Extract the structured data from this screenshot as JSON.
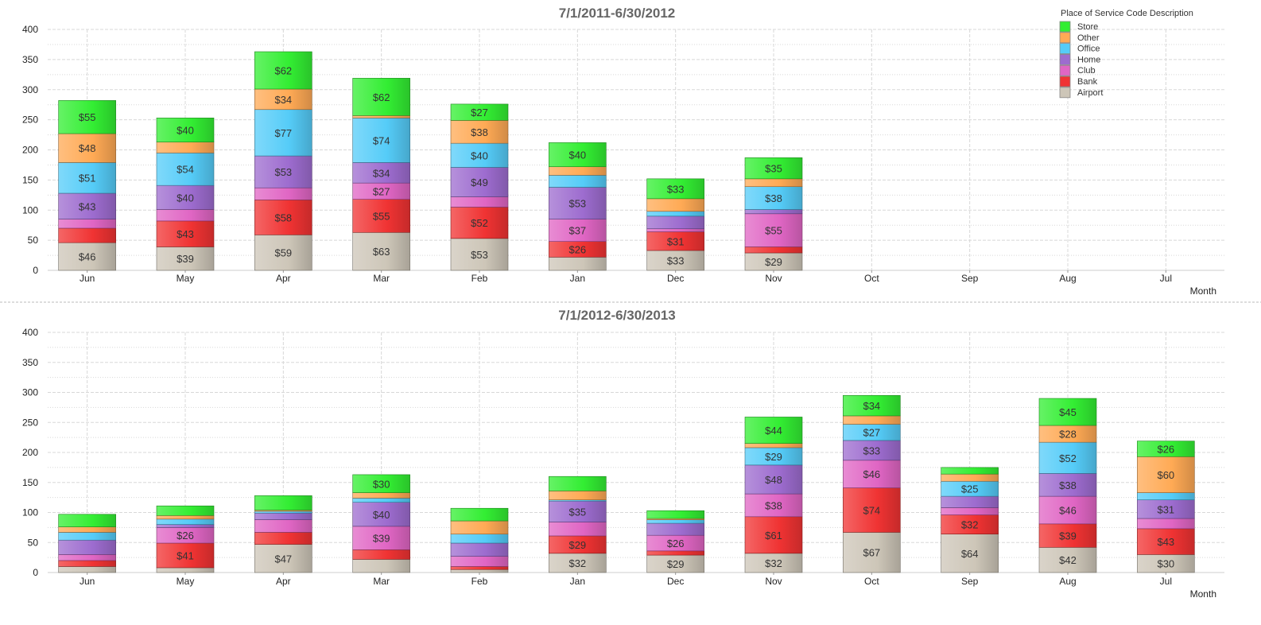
{
  "chart_data": [
    {
      "type": "bar",
      "stacked": true,
      "title": "7/1/2011-6/30/2012",
      "xlabel": "Month",
      "ylabel": "",
      "ylim": [
        0,
        400
      ],
      "yticks": [
        0,
        50,
        100,
        150,
        200,
        250,
        300,
        350,
        400
      ],
      "grid": true,
      "value_prefix": "$",
      "categories": [
        "Jun",
        "May",
        "Apr",
        "Mar",
        "Feb",
        "Jan",
        "Dec",
        "Nov",
        "Oct",
        "Sep",
        "Aug",
        "Jul"
      ],
      "series": [
        {
          "name": "Airport",
          "values": [
            46,
            39,
            59,
            63,
            53,
            22,
            33,
            29,
            0,
            0,
            0,
            0
          ]
        },
        {
          "name": "Bank",
          "values": [
            24,
            43,
            58,
            55,
            52,
            26,
            31,
            10,
            0,
            0,
            0,
            0
          ]
        },
        {
          "name": "Club",
          "values": [
            15,
            19,
            20,
            27,
            17,
            37,
            5,
            55,
            0,
            0,
            0,
            0
          ]
        },
        {
          "name": "Home",
          "values": [
            43,
            40,
            53,
            34,
            49,
            53,
            21,
            7,
            0,
            0,
            0,
            0
          ]
        },
        {
          "name": "Office",
          "values": [
            51,
            54,
            77,
            74,
            40,
            20,
            8,
            38,
            0,
            0,
            0,
            0
          ]
        },
        {
          "name": "Other",
          "values": [
            48,
            18,
            34,
            4,
            38,
            14,
            21,
            13,
            0,
            0,
            0,
            0
          ]
        },
        {
          "name": "Store",
          "values": [
            55,
            40,
            62,
            62,
            27,
            40,
            33,
            35,
            0,
            0,
            0,
            0
          ]
        }
      ]
    },
    {
      "type": "bar",
      "stacked": true,
      "title": "7/1/2012-6/30/2013",
      "xlabel": "Month",
      "ylabel": "",
      "ylim": [
        0,
        400
      ],
      "yticks": [
        0,
        50,
        100,
        150,
        200,
        250,
        300,
        350,
        400
      ],
      "grid": true,
      "value_prefix": "$",
      "categories": [
        "Jun",
        "May",
        "Apr",
        "Mar",
        "Feb",
        "Jan",
        "Dec",
        "Nov",
        "Oct",
        "Sep",
        "Aug",
        "Jul"
      ],
      "series": [
        {
          "name": "Airport",
          "values": [
            10,
            8,
            47,
            22,
            5,
            32,
            29,
            32,
            67,
            64,
            42,
            30
          ]
        },
        {
          "name": "Bank",
          "values": [
            10,
            41,
            20,
            16,
            5,
            29,
            7,
            61,
            74,
            32,
            39,
            43
          ]
        },
        {
          "name": "Club",
          "values": [
            10,
            26,
            21,
            39,
            17,
            23,
            26,
            38,
            46,
            12,
            46,
            17
          ]
        },
        {
          "name": "Home",
          "values": [
            24,
            5,
            11,
            40,
            22,
            35,
            20,
            48,
            33,
            19,
            38,
            31
          ]
        },
        {
          "name": "Office",
          "values": [
            13,
            9,
            3,
            7,
            15,
            2,
            6,
            29,
            27,
            25,
            52,
            12
          ]
        },
        {
          "name": "Other",
          "values": [
            9,
            6,
            2,
            9,
            22,
            15,
            2,
            7,
            14,
            12,
            28,
            60
          ]
        },
        {
          "name": "Store",
          "values": [
            21,
            16,
            24,
            30,
            21,
            24,
            13,
            44,
            34,
            11,
            45,
            26
          ]
        }
      ]
    }
  ],
  "legend": {
    "title": "Place of Service Code Description",
    "placement": "top-right",
    "items": [
      "Store",
      "Other",
      "Office",
      "Home",
      "Club",
      "Bank",
      "Airport"
    ]
  },
  "colors": {
    "Store": "#33ee33",
    "Other": "#ffaa55",
    "Office": "#55ccf8",
    "Home": "#9d6ccf",
    "Club": "#e066c4",
    "Bank": "#f03333",
    "Airport": "#cdc6b8"
  }
}
